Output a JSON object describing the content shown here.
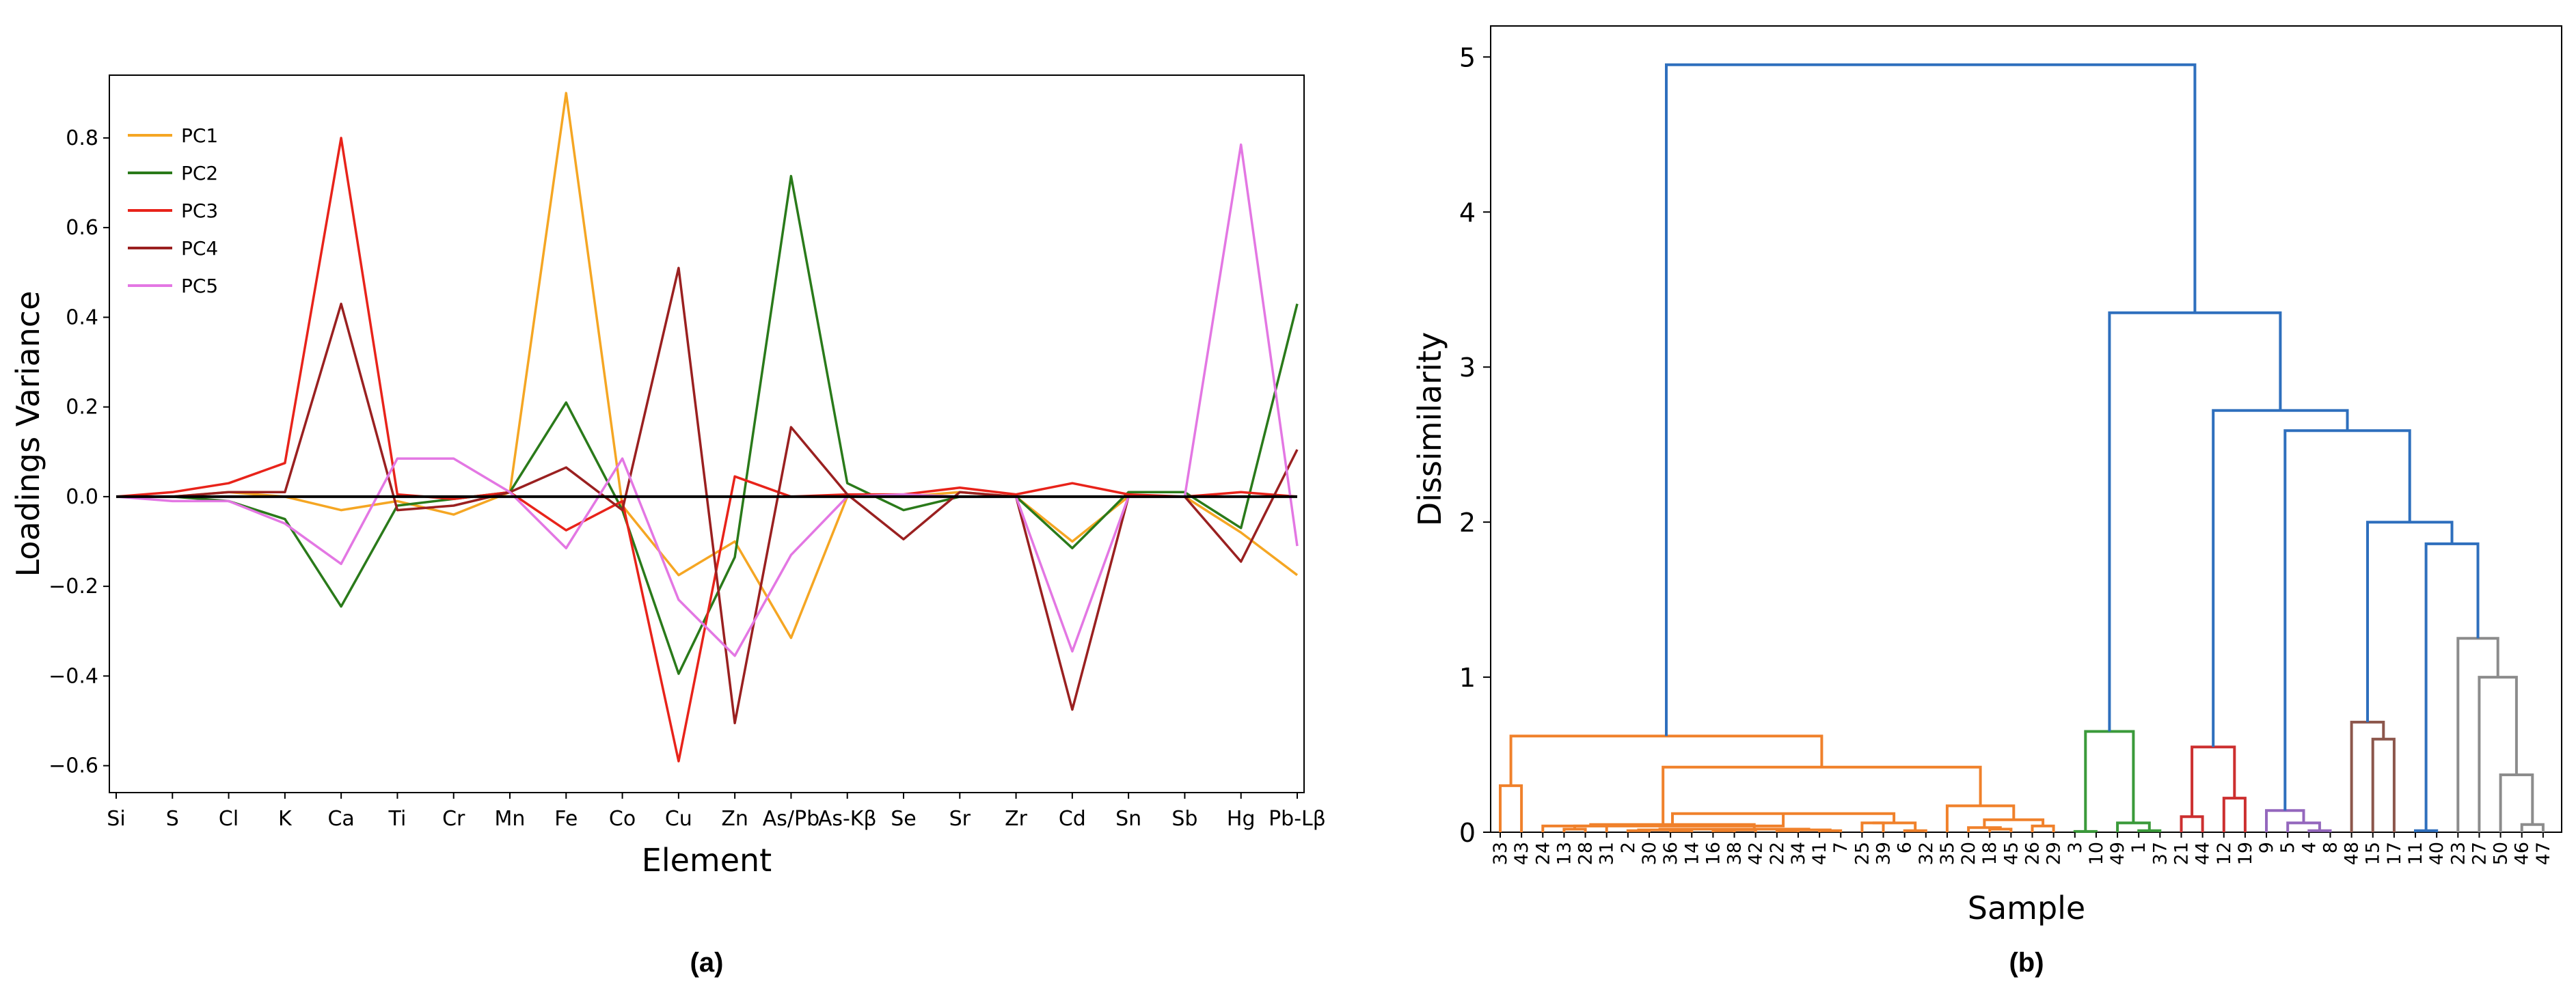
{
  "chart_data": [
    {
      "type": "line",
      "panel_label": "(a)",
      "xlabel": "Element",
      "ylabel": "Loadings Variance",
      "categories": [
        "Si",
        "S",
        "Cl",
        "K",
        "Ca",
        "Ti",
        "Cr",
        "Mn",
        "Fe",
        "Co",
        "Cu",
        "Zn",
        "As/Pb",
        "As-Kβ",
        "Se",
        "Sr",
        "Zr",
        "Cd",
        "Sn",
        "Sb",
        "Hg",
        "Pb-Lβ"
      ],
      "ylim": [
        -0.66,
        0.94
      ],
      "yticks": [
        -0.6,
        -0.4,
        -0.2,
        0.0,
        0.2,
        0.4,
        0.6,
        0.8
      ],
      "ytick_labels": [
        "−0.6",
        "−0.4",
        "−0.2",
        "0.0",
        "0.2",
        "0.4",
        "0.6",
        "0.8"
      ],
      "legend_position": "top-left",
      "baseline": 0.0,
      "baseline_color": "#000000",
      "series": [
        {
          "name": "PC1",
          "color": "#f5a623",
          "values": [
            0.0,
            0.0,
            0.01,
            0.0,
            -0.03,
            -0.01,
            -0.04,
            0.01,
            0.9,
            -0.02,
            -0.175,
            -0.1,
            -0.315,
            0.0,
            0.0,
            0.01,
            0.0,
            -0.1,
            0.0,
            0.0,
            -0.08,
            -0.175
          ]
        },
        {
          "name": "PC2",
          "color": "#2a7a1a",
          "values": [
            0.0,
            0.0,
            -0.01,
            -0.05,
            -0.245,
            -0.02,
            -0.005,
            0.01,
            0.21,
            -0.03,
            -0.395,
            -0.135,
            0.715,
            0.03,
            -0.03,
            0.0,
            0.0,
            -0.115,
            0.01,
            0.01,
            -0.07,
            0.43
          ]
        },
        {
          "name": "PC3",
          "color": "#e8231a",
          "values": [
            0.0,
            0.01,
            0.03,
            0.075,
            0.8,
            0.005,
            -0.005,
            0.01,
            -0.075,
            -0.01,
            -0.59,
            0.045,
            0.0,
            0.005,
            0.005,
            0.02,
            0.005,
            0.03,
            0.005,
            0.0,
            0.01,
            0.0
          ]
        },
        {
          "name": "PC4",
          "color": "#9a2020",
          "values": [
            0.0,
            0.0,
            0.01,
            0.01,
            0.43,
            -0.03,
            -0.02,
            0.01,
            0.065,
            -0.03,
            0.51,
            -0.505,
            0.155,
            0.005,
            -0.095,
            0.01,
            0.0,
            -0.475,
            0.0,
            0.0,
            -0.145,
            0.105
          ]
        },
        {
          "name": "PC5",
          "color": "#e377e3",
          "values": [
            0.0,
            -0.01,
            -0.01,
            -0.06,
            -0.15,
            0.085,
            0.085,
            0.01,
            -0.115,
            0.085,
            -0.23,
            -0.355,
            -0.13,
            0.0,
            0.005,
            0.0,
            0.0,
            -0.345,
            0.0,
            0.0,
            0.785,
            -0.11
          ]
        }
      ]
    },
    {
      "type": "dendrogram",
      "panel_label": "(b)",
      "xlabel": "Sample",
      "ylabel": "Dissimilarity",
      "ylim": [
        0,
        5.2
      ],
      "yticks": [
        0,
        1,
        2,
        3,
        4,
        5
      ],
      "ytick_labels": [
        "0",
        "1",
        "2",
        "3",
        "4",
        "5"
      ],
      "leaves": [
        "33",
        "43",
        "24",
        "13",
        "28",
        "31",
        "2",
        "30",
        "36",
        "14",
        "16",
        "38",
        "42",
        "22",
        "34",
        "41",
        "7",
        "25",
        "39",
        "6",
        "32",
        "35",
        "20",
        "18",
        "45",
        "26",
        "29",
        "3",
        "10",
        "49",
        "1",
        "37",
        "21",
        "44",
        "12",
        "19",
        "9",
        "5",
        "4",
        "8",
        "48",
        "15",
        "17",
        "11",
        "40",
        "23",
        "27",
        "50",
        "46",
        "47"
      ],
      "clusters": [
        {
          "name": "cluster-orange",
          "color": "#f0812b"
        },
        {
          "name": "cluster-green",
          "color": "#3a9a3a"
        },
        {
          "name": "cluster-red",
          "color": "#cc2f2f"
        },
        {
          "name": "cluster-purple",
          "color": "#9467bd"
        },
        {
          "name": "cluster-brown",
          "color": "#8c564b"
        },
        {
          "name": "cluster-gray",
          "color": "#8c8c8c"
        },
        {
          "name": "cluster-link-blue",
          "color": "#2e6fbd"
        }
      ],
      "merges": [
        {
          "a": "33",
          "b": "43",
          "h": 0.3,
          "c": 0
        },
        {
          "a": "13",
          "b": "28",
          "h": 0.02,
          "c": 0
        },
        {
          "a": "2",
          "b": "30",
          "h": 0.01,
          "c": 0
        },
        {
          "a": "36",
          "b": "14",
          "h": 0.01,
          "c": 0
        },
        {
          "a": "16",
          "b": "38",
          "h": 0.01,
          "c": 0
        },
        {
          "a": "22",
          "b": "34",
          "h": 0.01,
          "c": 0
        },
        {
          "a": "41",
          "b": "7",
          "h": 0.01,
          "c": 0
        },
        {
          "a": "6",
          "b": "32",
          "h": 0.01,
          "c": 0
        },
        {
          "a": "18",
          "b": "45",
          "h": 0.02,
          "c": 0
        },
        {
          "a": "26",
          "b": "29",
          "h": 0.04,
          "c": 0
        },
        {
          "a": "3",
          "b": "10",
          "h": 0.005,
          "c": 1
        },
        {
          "a": "1",
          "b": "37",
          "h": 0.01,
          "c": 1
        },
        {
          "a": "21",
          "b": "44",
          "h": 0.1,
          "c": 2
        },
        {
          "a": "12",
          "b": "19",
          "h": 0.22,
          "c": 2
        },
        {
          "a": "4",
          "b": "8",
          "h": 0.01,
          "c": 3
        },
        {
          "a": "15",
          "b": "17",
          "h": 0.6,
          "c": 4
        },
        {
          "a": "11",
          "b": "40",
          "h": 0.01,
          "c": 6
        },
        {
          "a": "46",
          "b": "47",
          "h": 0.05,
          "c": 5
        }
      ],
      "groups": [
        {
          "members": [
            "13",
            "28",
            "31"
          ],
          "h": 0.04,
          "c": 0
        },
        {
          "members": [
            "2",
            "30",
            "36",
            "14"
          ],
          "h": 0.015,
          "c": 0
        },
        {
          "members": [
            "16",
            "38",
            "42"
          ],
          "h": 0.015,
          "c": 0
        },
        {
          "members": [
            "22",
            "34",
            "41",
            "7"
          ],
          "h": 0.015,
          "c": 0
        },
        {
          "members": [
            "2",
            "30",
            "36",
            "14",
            "16",
            "38",
            "42",
            "22",
            "34",
            "41",
            "7"
          ],
          "h": 0.02,
          "c": 0
        },
        {
          "members": [
            "13",
            "28",
            "31",
            "2",
            "30",
            "36",
            "14",
            "16",
            "38",
            "42",
            "22",
            "34",
            "41",
            "7"
          ],
          "h": 0.05,
          "c": 0
        },
        {
          "members": [
            "25",
            "39",
            "6",
            "32"
          ],
          "h": 0.06,
          "c": 0
        },
        {
          "members": [
            "13",
            "28",
            "31",
            "2",
            "30",
            "36",
            "14",
            "16",
            "38",
            "42",
            "22",
            "34",
            "41",
            "7",
            "25",
            "39",
            "6",
            "32"
          ],
          "h": 0.12,
          "c": 0
        },
        {
          "members": [
            "24",
            "13",
            "28",
            "31",
            "2",
            "30",
            "36",
            "14",
            "16",
            "38",
            "42",
            "22",
            "34",
            "41",
            "7",
            "25",
            "39",
            "6",
            "32"
          ],
          "h": 0.04,
          "c": 0
        },
        {
          "members": [
            "20",
            "18",
            "45"
          ],
          "h": 0.03,
          "c": 0
        },
        {
          "members": [
            "20",
            "18",
            "45",
            "26",
            "29"
          ],
          "h": 0.08,
          "c": 0
        },
        {
          "members": [
            "35",
            "20",
            "18",
            "45",
            "26",
            "29"
          ],
          "h": 0.17,
          "c": 0
        },
        {
          "members": [
            "13",
            "28",
            "31",
            "2",
            "30",
            "36",
            "14",
            "16",
            "38",
            "42",
            "22",
            "34",
            "41",
            "7",
            "25",
            "39",
            "6",
            "32",
            "35",
            "20",
            "18",
            "45",
            "26",
            "29"
          ],
          "h": 0.42,
          "c": 0
        },
        {
          "members": [
            "33",
            "43",
            "24",
            "13",
            "28",
            "31",
            "2",
            "30",
            "36",
            "14",
            "16",
            "38",
            "42",
            "22",
            "34",
            "41",
            "7",
            "25",
            "39",
            "6",
            "32",
            "35",
            "20",
            "18",
            "45",
            "26",
            "29"
          ],
          "h": 0.62,
          "c": 0
        },
        {
          "members": [
            "49",
            "1",
            "37"
          ],
          "h": 0.06,
          "c": 1
        },
        {
          "members": [
            "3",
            "10",
            "49",
            "1",
            "37"
          ],
          "h": 0.65,
          "c": 1
        },
        {
          "members": [
            "21",
            "44",
            "12",
            "19"
          ],
          "h": 0.55,
          "c": 2
        },
        {
          "members": [
            "5",
            "4",
            "8"
          ],
          "h": 0.06,
          "c": 3
        },
        {
          "members": [
            "9",
            "5",
            "4",
            "8"
          ],
          "h": 0.14,
          "c": 3
        },
        {
          "members": [
            "48",
            "15",
            "17"
          ],
          "h": 0.71,
          "c": 4
        },
        {
          "members": [
            "50",
            "46",
            "47"
          ],
          "h": 0.37,
          "c": 5
        },
        {
          "members": [
            "27",
            "50",
            "46",
            "47"
          ],
          "h": 1.0,
          "c": 5
        },
        {
          "members": [
            "23",
            "27",
            "50",
            "46",
            "47"
          ],
          "h": 1.25,
          "c": 5
        },
        {
          "members": [
            "11",
            "40",
            "23",
            "27",
            "50",
            "46",
            "47"
          ],
          "h": 1.86,
          "c": 6
        },
        {
          "members": [
            "48",
            "15",
            "17",
            "11",
            "40",
            "23",
            "27",
            "50",
            "46",
            "47"
          ],
          "h": 2.0,
          "c": 6
        },
        {
          "members": [
            "9",
            "5",
            "4",
            "8",
            "48",
            "15",
            "17",
            "11",
            "40",
            "23",
            "27",
            "50",
            "46",
            "47"
          ],
          "h": 2.59,
          "c": 6
        },
        {
          "members": [
            "21",
            "44",
            "12",
            "19",
            "9",
            "5",
            "4",
            "8",
            "48",
            "15",
            "17",
            "11",
            "40",
            "23",
            "27",
            "50",
            "46",
            "47"
          ],
          "h": 2.72,
          "c": 6
        },
        {
          "members": [
            "3",
            "10",
            "49",
            "1",
            "37",
            "21",
            "44",
            "12",
            "19",
            "9",
            "5",
            "4",
            "8",
            "48",
            "15",
            "17",
            "11",
            "40",
            "23",
            "27",
            "50",
            "46",
            "47"
          ],
          "h": 3.35,
          "c": 6
        },
        {
          "members": [
            "33",
            "43",
            "24",
            "13",
            "28",
            "31",
            "2",
            "30",
            "36",
            "14",
            "16",
            "38",
            "42",
            "22",
            "34",
            "41",
            "7",
            "25",
            "39",
            "6",
            "32",
            "35",
            "20",
            "18",
            "45",
            "26",
            "29",
            "3",
            "10",
            "49",
            "1",
            "37",
            "21",
            "44",
            "12",
            "19",
            "9",
            "5",
            "4",
            "8",
            "48",
            "15",
            "17",
            "11",
            "40",
            "23",
            "27",
            "50",
            "46",
            "47"
          ],
          "h": 4.95,
          "c": 6
        }
      ]
    }
  ]
}
